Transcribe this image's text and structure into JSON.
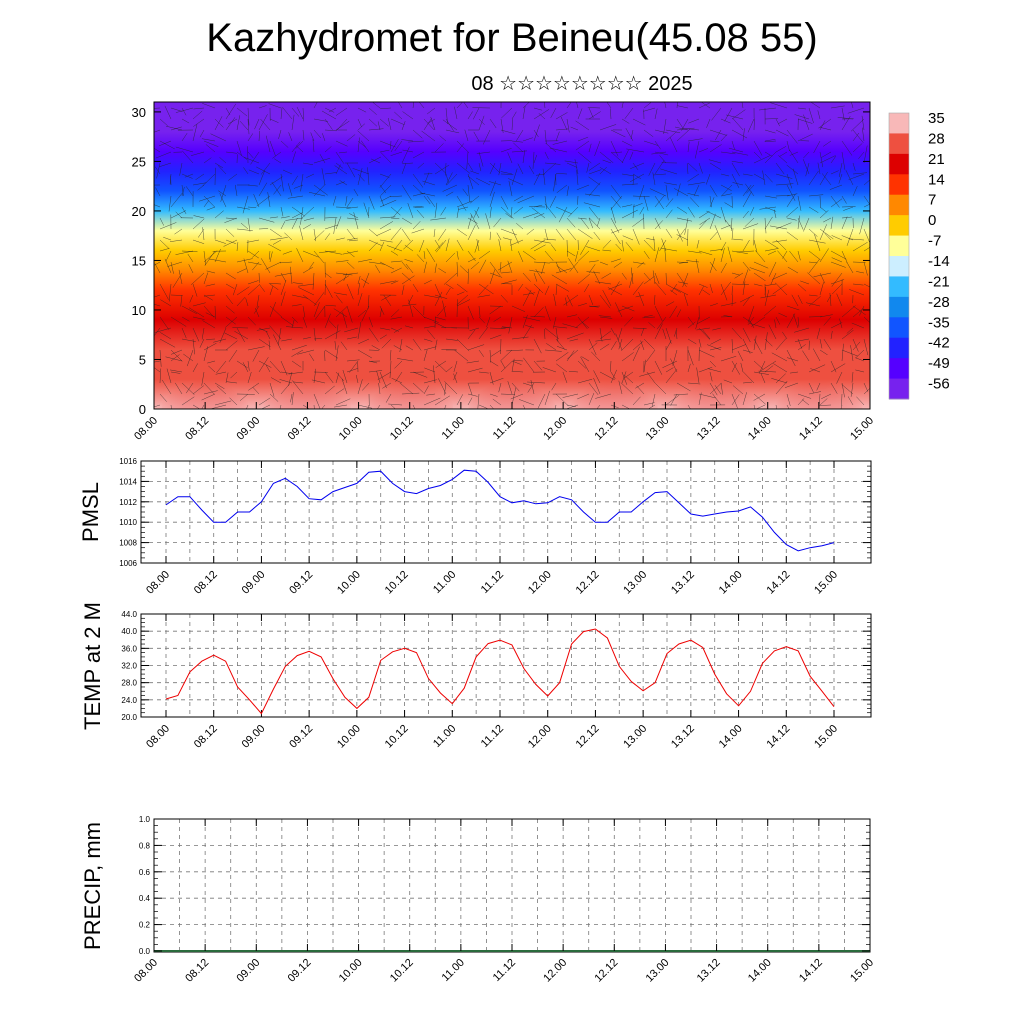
{
  "title": "Kazhydromet for Beineu(45.08 55)",
  "subtitle": "08 ☆☆☆☆☆☆☆☆ 2025",
  "chart_data": [
    {
      "id": "cross-section",
      "type": "heatmap",
      "title": "",
      "xlabel": "",
      "ylabel": "",
      "x_ticks": [
        "08.00",
        "08.12",
        "09.00",
        "09.12",
        "10.00",
        "10.12",
        "11.00",
        "11.12",
        "12.00",
        "12.12",
        "13.00",
        "13.12",
        "14.00",
        "14.12",
        "15.00"
      ],
      "y_ticks": [
        0,
        5,
        10,
        15,
        20,
        25,
        30
      ],
      "ylim": [
        0,
        31
      ],
      "colorbar_labels": [
        35,
        28,
        21,
        14,
        7,
        0,
        -7,
        -14,
        -21,
        -28,
        -35,
        -42,
        -49,
        -56
      ],
      "colorbar_colors": [
        "#f8b8b8",
        "#ee5040",
        "#dd0000",
        "#ff3300",
        "#ff8800",
        "#ffcc00",
        "#ffff99",
        "#cceeff",
        "#33bbff",
        "#1188ee",
        "#1155ff",
        "#2222ff",
        "#5500ff",
        "#7722ee"
      ],
      "overlay": "wind vectors",
      "temperature_profile": {
        "height": [
          0,
          3,
          6,
          9,
          12,
          14,
          16,
          18,
          20,
          22,
          24,
          26,
          28,
          31
        ],
        "value": [
          30,
          26,
          22,
          18,
          12,
          6,
          -2,
          -12,
          -24,
          -36,
          -46,
          -54,
          -58,
          -60
        ]
      }
    },
    {
      "id": "pmsl",
      "type": "line",
      "xlabel": "",
      "ylabel": "PMSL",
      "ylim": [
        1006,
        1016
      ],
      "y_ticks": [
        "1006",
        "1008",
        "1010",
        "1012",
        "1014",
        "1016"
      ],
      "x_ticks": [
        "08.00",
        "08.12",
        "09.00",
        "09.12",
        "10.00",
        "10.12",
        "11.00",
        "11.12",
        "12.00",
        "12.12",
        "13.00",
        "13.12",
        "14.00",
        "14.12",
        "15.00"
      ],
      "color": "#0000ee",
      "x": [
        0,
        3,
        6,
        9,
        12,
        15,
        18,
        21,
        24,
        27,
        30,
        33,
        36,
        39,
        42,
        45,
        48,
        51,
        54,
        57,
        60,
        63,
        66,
        69,
        72,
        75,
        78,
        81,
        84,
        87,
        90,
        93,
        96,
        99,
        102,
        105,
        108,
        111,
        114,
        117,
        120,
        123,
        126,
        129,
        132,
        135,
        138,
        141,
        144,
        147,
        150,
        153,
        156,
        159,
        162,
        165,
        168
      ],
      "values": [
        1011.7,
        1012.5,
        1012.5,
        1011.2,
        1010.0,
        1010.0,
        1011.0,
        1011.0,
        1012.0,
        1013.8,
        1014.3,
        1013.5,
        1012.3,
        1012.2,
        1013.0,
        1013.4,
        1013.8,
        1014.9,
        1015.0,
        1013.8,
        1013.0,
        1012.8,
        1013.3,
        1013.6,
        1014.2,
        1015.1,
        1015.0,
        1013.9,
        1012.5,
        1011.9,
        1012.1,
        1011.8,
        1011.9,
        1012.5,
        1012.2,
        1011.0,
        1010.0,
        1010.0,
        1011.0,
        1011.0,
        1012.0,
        1012.9,
        1013.0,
        1011.9,
        1010.8,
        1010.6,
        1010.8,
        1011.0,
        1011.1,
        1011.5,
        1010.5,
        1009.0,
        1007.8,
        1007.2,
        1007.5,
        1007.7,
        1008.0
      ]
    },
    {
      "id": "temp2m",
      "type": "line",
      "xlabel": "",
      "ylabel": "TEMP at 2 M",
      "ylim": [
        20,
        44
      ],
      "y_ticks": [
        "20.0",
        "24.0",
        "28.0",
        "32.0",
        "36.0",
        "40.0",
        "44.0"
      ],
      "x_ticks": [
        "08.00",
        "08.12",
        "09.00",
        "09.12",
        "10.00",
        "10.12",
        "11.00",
        "11.12",
        "12.00",
        "12.12",
        "13.00",
        "13.12",
        "14.00",
        "14.12",
        "15.00"
      ],
      "color": "#ee0000",
      "x": [
        0,
        3,
        6,
        9,
        12,
        15,
        18,
        21,
        24,
        27,
        30,
        33,
        36,
        39,
        42,
        45,
        48,
        51,
        54,
        57,
        60,
        63,
        66,
        69,
        72,
        75,
        78,
        81,
        84,
        87,
        90,
        93,
        96,
        99,
        102,
        105,
        108,
        111,
        114,
        117,
        120,
        123,
        126,
        129,
        132,
        135,
        138,
        141,
        144,
        147,
        150,
        153,
        156,
        159,
        162,
        165,
        168
      ],
      "values": [
        24.2,
        25.0,
        30.5,
        33.0,
        34.4,
        33.0,
        27.0,
        24.0,
        20.8,
        26.5,
        31.8,
        34.3,
        35.3,
        34.0,
        28.9,
        24.6,
        22.0,
        24.6,
        33.2,
        35.2,
        36.0,
        35.0,
        29.0,
        25.6,
        23.1,
        26.7,
        34.0,
        37.1,
        37.9,
        36.8,
        31.3,
        27.6,
        24.9,
        28.0,
        37.0,
        39.9,
        40.5,
        38.4,
        31.8,
        28.3,
        26.1,
        28.0,
        34.8,
        37.0,
        37.9,
        36.2,
        30.0,
        25.4,
        22.6,
        26.0,
        32.5,
        35.4,
        36.4,
        35.4,
        29.5,
        26.0,
        22.4
      ]
    },
    {
      "id": "precip",
      "type": "bar",
      "xlabel": "",
      "ylabel": "PRECIP, mm",
      "ylim": [
        0,
        1
      ],
      "y_ticks": [
        "0.0",
        "0.2",
        "0.4",
        "0.6",
        "0.8",
        "1.0"
      ],
      "x_ticks": [
        "08.00",
        "08.12",
        "09.00",
        "09.12",
        "10.00",
        "10.12",
        "11.00",
        "11.12",
        "12.00",
        "12.12",
        "13.00",
        "13.12",
        "14.00",
        "14.12",
        "15.00"
      ],
      "values_description_none": [],
      "series": [
        {
          "values": [
            0,
            0,
            0,
            0,
            0,
            0,
            0,
            0,
            0,
            0,
            0,
            0,
            0,
            0,
            0
          ]
        }
      ]
    }
  ]
}
